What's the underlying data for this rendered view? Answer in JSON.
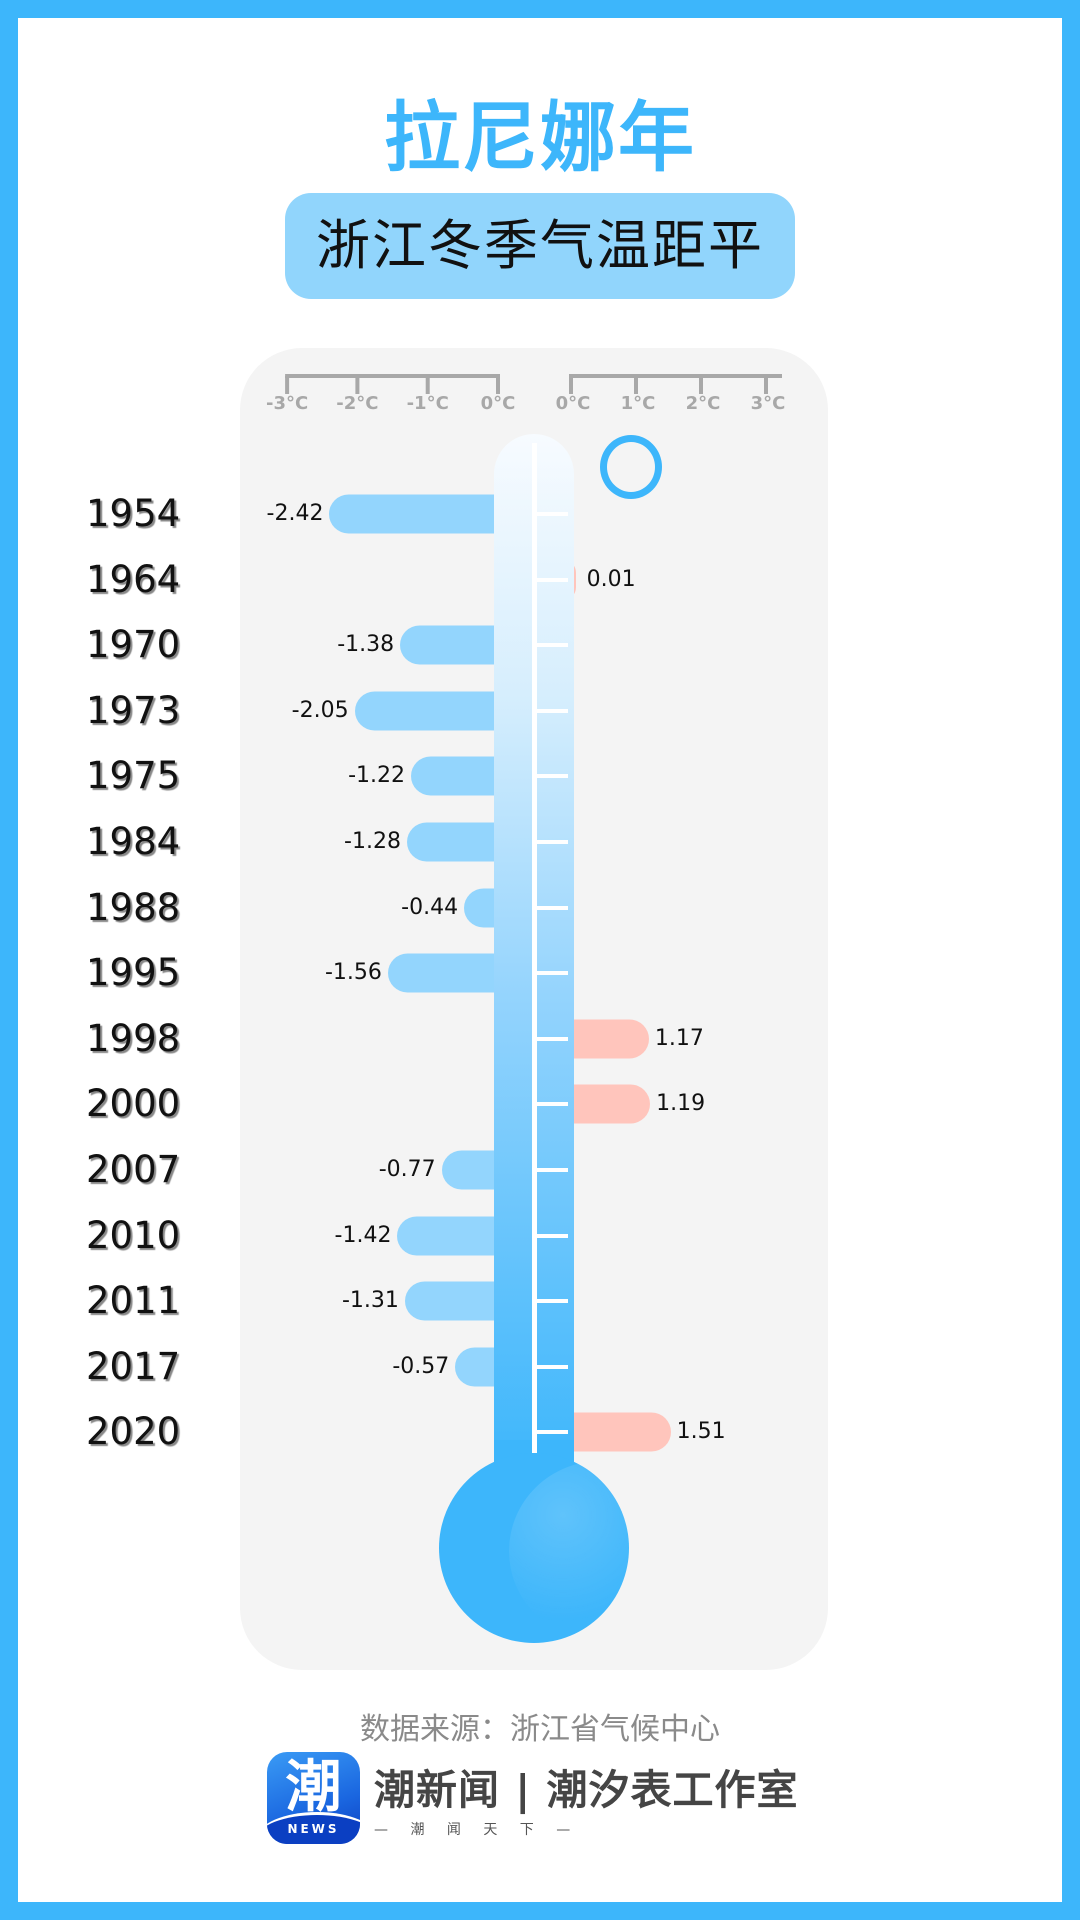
{
  "header": {
    "title": "拉尼娜年",
    "subtitle": "浙江冬季气温距平"
  },
  "colors": {
    "border": "#3db6fb",
    "title": "#3db6fb",
    "subtitle_bg": "#91d5fc",
    "negative_bar": "#93d5fd",
    "positive_bar": "#ffc5bc",
    "panel": "#f4f4f4",
    "snowflake": "#8ecbfa"
  },
  "chart_data": {
    "type": "bar",
    "orientation": "horizontal-diverging",
    "title": "拉尼娜年 浙江冬季气温距平",
    "categories": [
      "1954",
      "1964",
      "1970",
      "1973",
      "1975",
      "1984",
      "1988",
      "1995",
      "1998",
      "2000",
      "2007",
      "2010",
      "2011",
      "2017",
      "2020"
    ],
    "values": [
      -2.42,
      0.01,
      -1.38,
      -2.05,
      -1.22,
      -1.28,
      -0.44,
      -1.56,
      1.17,
      1.19,
      -0.77,
      -1.42,
      -1.31,
      -0.57,
      1.51
    ],
    "value_labels": [
      "-2.42",
      "0.01",
      "-1.38",
      "-2.05",
      "-1.22",
      "-1.28",
      "-0.44",
      "-1.56",
      "1.17",
      "1.19",
      "-0.77",
      "-1.42",
      "-1.31",
      "-0.57",
      "1.51"
    ],
    "unit": "°C",
    "xlim": [
      -3,
      3
    ],
    "axis_left": {
      "ticks": [
        -3,
        -2,
        -1,
        0
      ],
      "labels": [
        "-3°C",
        "-2°C",
        "-1°C",
        "0°C"
      ]
    },
    "axis_right": {
      "ticks": [
        0,
        1,
        2,
        3
      ],
      "labels": [
        "0°C",
        "1°C",
        "2°C",
        "3°C"
      ]
    },
    "grid": false,
    "legend": "none"
  },
  "footer": {
    "source": "数据来源：浙江省气候中心",
    "logo_char": "潮",
    "logo_news": "NEWS",
    "brand": "潮新闻 | 潮汐表工作室",
    "tagline": "— 潮 闻 天 下 —"
  }
}
